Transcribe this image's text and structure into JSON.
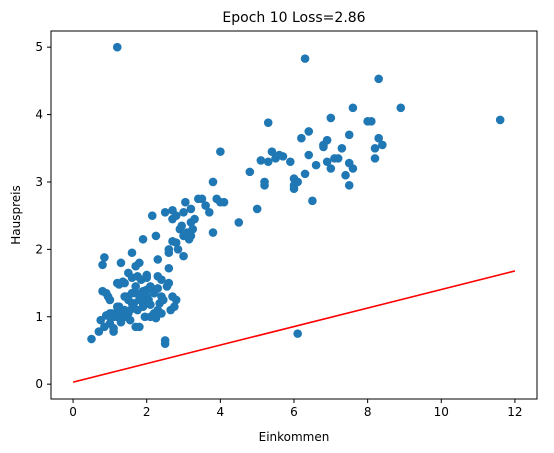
{
  "chart_data": {
    "type": "scatter",
    "title": "Epoch 10 Loss=2.86",
    "xlabel": "Einkommen",
    "ylabel": "Hauspreis",
    "xlim": [
      -0.6,
      12.6
    ],
    "ylim": [
      -0.22,
      5.24
    ],
    "xticks": [
      "0",
      "2",
      "4",
      "6",
      "8",
      "10",
      "12"
    ],
    "yticks": [
      "0",
      "1",
      "2",
      "3",
      "4",
      "5"
    ],
    "grid": false,
    "colors": {
      "points": "#1f77b4",
      "line": "#ff0000"
    },
    "series": [
      {
        "kind": "points",
        "x": [
          0.5,
          0.75,
          0.85,
          0.8,
          0.9,
          0.95,
          1.0,
          0.8,
          0.85,
          1.0,
          1.1,
          1.1,
          1.15,
          1.2,
          1.2,
          1.25,
          1.3,
          1.3,
          1.35,
          1.35,
          1.4,
          1.45,
          1.45,
          1.5,
          1.5,
          1.55,
          1.6,
          1.6,
          1.6,
          1.65,
          1.7,
          1.7,
          1.75,
          1.75,
          1.8,
          1.8,
          1.85,
          1.85,
          1.9,
          1.9,
          1.95,
          2.0,
          2.0,
          2.05,
          2.1,
          2.1,
          2.15,
          2.2,
          2.2,
          2.25,
          2.25,
          2.3,
          2.3,
          2.35,
          2.4,
          2.4,
          2.45,
          2.5,
          2.5,
          2.55,
          2.6,
          2.6,
          2.65,
          2.7,
          2.7,
          2.75,
          2.8,
          2.85,
          2.9,
          2.95,
          3.0,
          3.0,
          3.05,
          3.1,
          3.15,
          3.2,
          3.2,
          3.25,
          3.3,
          3.4,
          3.5,
          3.6,
          3.7,
          3.8,
          3.9,
          4.0,
          4.1,
          1.0,
          1.05,
          1.4,
          1.6,
          1.7,
          1.9,
          2.0,
          2.1,
          2.3,
          2.5,
          2.7,
          0.9,
          1.2,
          1.3,
          1.5,
          1.8,
          2.2,
          2.4,
          2.6,
          2.8,
          3.0,
          3.2,
          1.1,
          1.4,
          2.0,
          2.3,
          1.6,
          1.9,
          2.7,
          1.25,
          2.6,
          2.8,
          3.8,
          1.2,
          1.7,
          0.7,
          1.0,
          4.5,
          5.0,
          5.2,
          5.3,
          5.5,
          5.7,
          5.9,
          6.0,
          6.1,
          6.3,
          6.4,
          6.6,
          6.8,
          7.0,
          7.2,
          7.4,
          7.6,
          8.0,
          8.2,
          8.3,
          8.4,
          6.0,
          6.5,
          7.5,
          8.2,
          4.8,
          5.1,
          5.4,
          6.2,
          6.9,
          7.1,
          7.3,
          7.5,
          5.2,
          6.0,
          6.8,
          8.3,
          8.9,
          11.6,
          6.4,
          1.2,
          6.1,
          7.6,
          6.3,
          8.1,
          7.0,
          7.5,
          5.3,
          5.6,
          6.9,
          4.0
        ],
        "y": [
          0.67,
          0.95,
          0.85,
          1.38,
          1.35,
          1.3,
          1.25,
          1.77,
          1.88,
          1.05,
          0.78,
          0.83,
          1.05,
          1.0,
          1.5,
          1.48,
          0.92,
          1.1,
          1.02,
          1.52,
          1.1,
          1.0,
          1.3,
          1.05,
          1.65,
          0.95,
          1.12,
          1.35,
          1.58,
          1.2,
          0.85,
          1.45,
          1.1,
          1.6,
          1.25,
          1.8,
          1.3,
          1.55,
          1.38,
          1.2,
          1.0,
          1.4,
          1.62,
          1.25,
          1.18,
          1.45,
          2.5,
          1.05,
          1.35,
          0.98,
          2.2,
          1.1,
          1.42,
          1.2,
          1.3,
          1.55,
          1.25,
          0.6,
          0.65,
          1.45,
          1.72,
          2.0,
          1.1,
          1.3,
          2.45,
          1.15,
          2.1,
          2.0,
          2.3,
          2.35,
          2.2,
          2.55,
          2.7,
          2.25,
          2.15,
          2.4,
          2.6,
          2.3,
          2.45,
          2.75,
          2.75,
          2.65,
          2.55,
          2.25,
          2.75,
          2.7,
          2.7,
          0.9,
          1.05,
          1.5,
          1.2,
          1.75,
          1.15,
          1.3,
          1.0,
          1.6,
          2.55,
          2.58,
          1.02,
          1.0,
          1.8,
          1.25,
          0.85,
          1.05,
          1.05,
          1.95,
          1.25,
          1.9,
          2.2,
          1.0,
          1.3,
          1.58,
          1.85,
          1.95,
          2.15,
          2.12,
          1.15,
          1.5,
          2.5,
          3.0,
          1.15,
          1.35,
          0.78,
          1.0,
          2.4,
          2.6,
          2.95,
          3.3,
          3.35,
          3.38,
          3.3,
          3.05,
          3.0,
          3.12,
          3.4,
          3.25,
          3.52,
          3.2,
          3.35,
          3.1,
          3.2,
          3.9,
          3.5,
          3.65,
          3.55,
          2.9,
          2.72,
          2.95,
          3.35,
          3.15,
          3.32,
          3.45,
          3.65,
          3.3,
          3.35,
          3.5,
          3.28,
          3.0,
          2.95,
          3.55,
          4.53,
          4.1,
          3.92,
          3.75,
          5.0,
          0.75,
          4.1,
          4.83,
          3.9,
          3.95,
          3.7,
          3.88,
          3.4,
          3.62,
          3.45
        ]
      },
      {
        "kind": "line",
        "x": [
          0,
          12
        ],
        "y": [
          0.03,
          1.68
        ]
      }
    ]
  }
}
